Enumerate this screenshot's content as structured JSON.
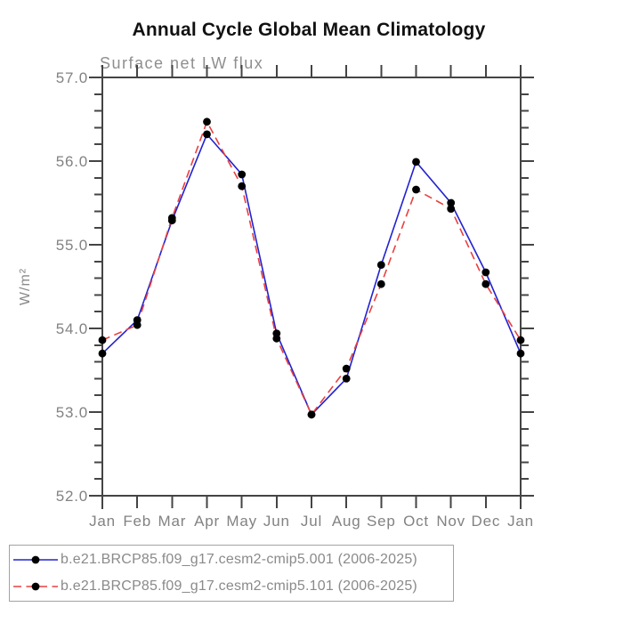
{
  "title": "Annual Cycle Global Mean Climatology",
  "subtitle": "Surface net LW flux",
  "ylabel": "W/m²",
  "chart_data": {
    "type": "line",
    "x_categories": [
      "Jan",
      "Feb",
      "Mar",
      "Apr",
      "May",
      "Jun",
      "Jul",
      "Aug",
      "Sep",
      "Oct",
      "Nov",
      "Dec",
      "Jan"
    ],
    "ylim": [
      52.0,
      57.0
    ],
    "ytick_interval": 1.0,
    "ytick_minor_interval": 0.2,
    "ytick_labels": [
      "57.0",
      "56.0",
      "55.0",
      "54.0",
      "53.0",
      "52.0"
    ],
    "grid": false,
    "legend_position": "bottom-left",
    "marker": "filled-black-circle",
    "series": [
      {
        "name": "b.e21.BRCP85.f09_g17.cesm2-cmip5.001 (2006-2025)",
        "color": "#2222d0",
        "style": "solid",
        "values": [
          53.7,
          54.1,
          55.29,
          56.32,
          55.84,
          53.94,
          52.97,
          53.4,
          54.76,
          55.99,
          55.5,
          54.67,
          53.7
        ]
      },
      {
        "name": "b.e21.BRCP85.f09_g17.cesm2-cmip5.101 (2006-2025)",
        "color": "#e84040",
        "style": "dashed",
        "values": [
          53.86,
          54.04,
          55.32,
          56.47,
          55.7,
          53.88,
          52.97,
          53.52,
          54.53,
          55.66,
          55.43,
          54.53,
          53.86
        ]
      }
    ]
  },
  "colors": {
    "axis": "#444444",
    "tick_label": "#828282",
    "marker": "#000000",
    "background": "#ffffff"
  }
}
